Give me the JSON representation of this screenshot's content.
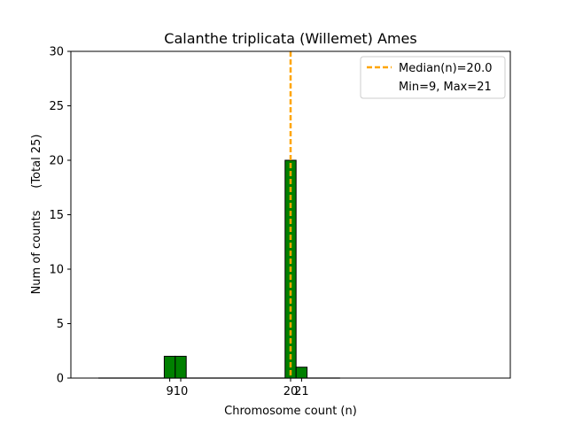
{
  "chart_data": {
    "type": "bar",
    "title": "Calanthe triplicata (Willemet) Ames",
    "xlabel": "Chromosome count (n)",
    "ylabel": "Num of counts      (Total 25)",
    "xlim": [
      0,
      40
    ],
    "ylim": [
      0,
      30
    ],
    "yticks": [
      0,
      5,
      10,
      15,
      20,
      25,
      30
    ],
    "xticks": [
      9,
      10,
      20,
      21
    ],
    "xtick_labels": [
      "9",
      "10",
      "20",
      "21"
    ],
    "bar_width": 1,
    "bars": [
      {
        "x": 9,
        "value": 2
      },
      {
        "x": 10,
        "value": 2
      },
      {
        "x": 20,
        "value": 20
      },
      {
        "x": 21,
        "value": 1
      }
    ],
    "zero_extent": [
      2.5,
      24.5
    ],
    "median": 20.0,
    "bar_color": "#008000",
    "median_color": "#FFA500",
    "legend": {
      "placement": "top-right",
      "entries": [
        "Median(n)=20.0",
        "Min=9, Max=21"
      ]
    },
    "grid": false
  }
}
